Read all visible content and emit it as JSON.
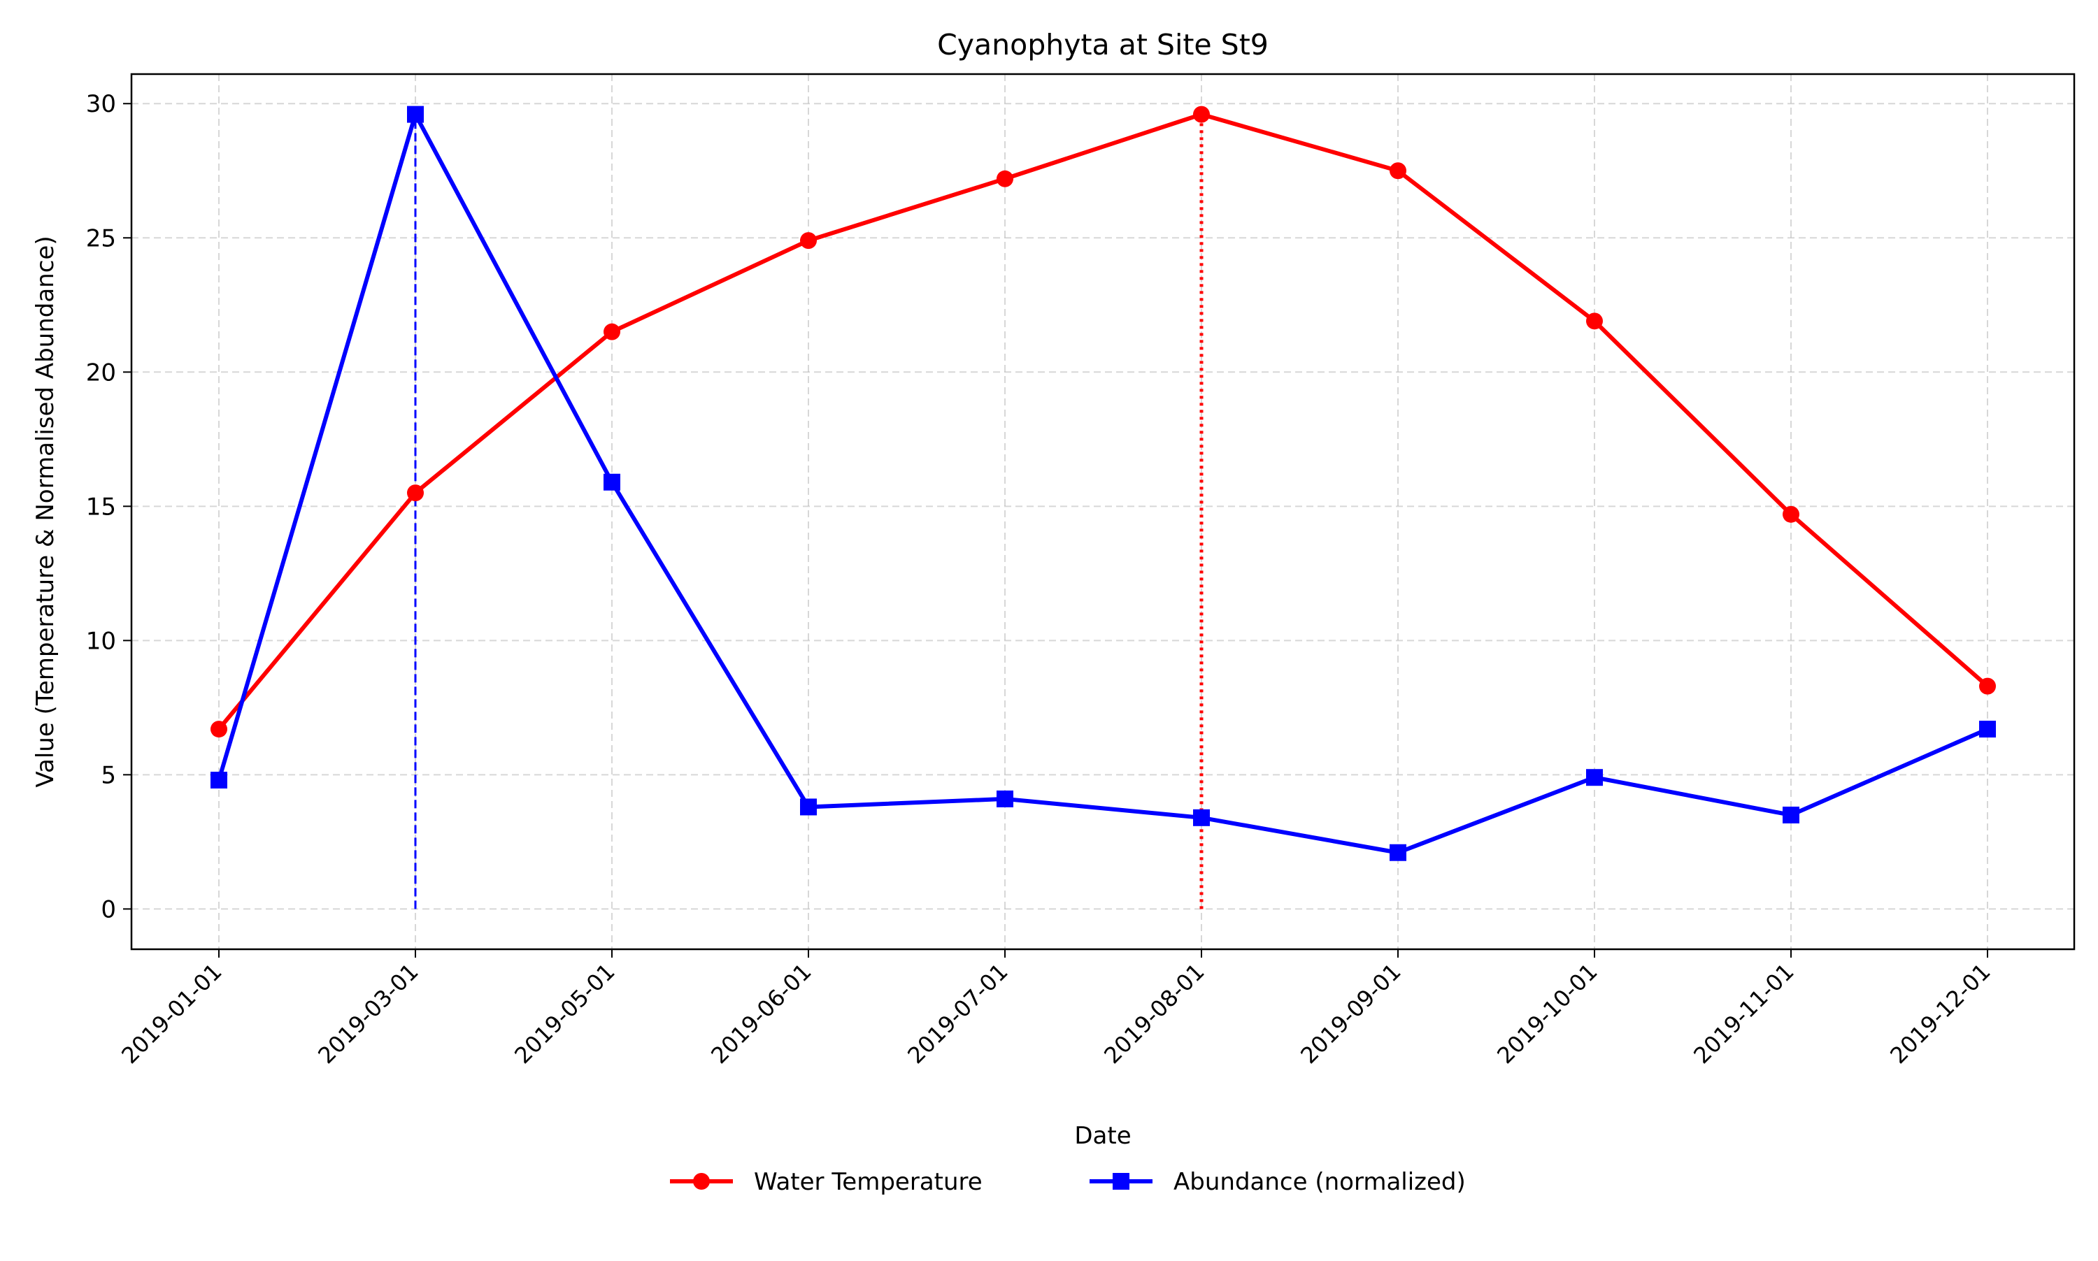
{
  "chart_data": {
    "type": "line",
    "title": "Cyanophyta at Site St9",
    "xlabel": "Date",
    "ylabel": "Value (Temperature & Normalised Abundance)",
    "categories": [
      "2019-01-01",
      "2019-03-01",
      "2019-05-01",
      "2019-06-01",
      "2019-07-01",
      "2019-08-01",
      "2019-09-01",
      "2019-10-01",
      "2019-11-01",
      "2019-12-01"
    ],
    "ylim": [
      -1.5,
      31.1
    ],
    "yticks": [
      0,
      5,
      10,
      15,
      20,
      25,
      30
    ],
    "grid": true,
    "legend_position": "bottom-center",
    "series": [
      {
        "name": "Water Temperature",
        "color": "#ff0000",
        "marker": "circle",
        "values": [
          6.7,
          15.5,
          21.5,
          24.9,
          27.2,
          29.6,
          27.5,
          21.9,
          14.7,
          8.3
        ]
      },
      {
        "name": "Abundance (normalized)",
        "color": "#0000ff",
        "marker": "square",
        "values": [
          4.8,
          29.6,
          15.9,
          3.8,
          4.1,
          3.4,
          2.1,
          4.9,
          3.5,
          6.7
        ]
      }
    ],
    "annotations": [
      {
        "type": "vline",
        "category": "2019-03-01",
        "from": 0,
        "to": 29.6,
        "style": "dashed",
        "color": "#0000ff"
      },
      {
        "type": "vline",
        "category": "2019-08-01",
        "from": 0,
        "to": 29.6,
        "style": "dotted",
        "color": "#ff0000"
      }
    ]
  }
}
